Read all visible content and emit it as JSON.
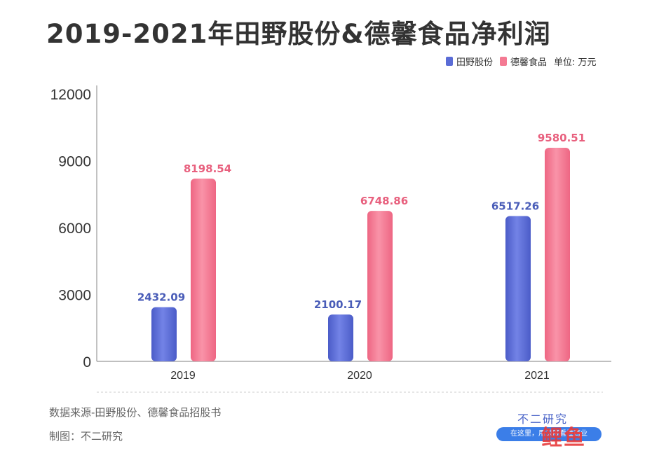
{
  "chart_data": {
    "type": "bar",
    "title": "2019-2021年田野股份&德馨食品净利润",
    "unit": "单位: 万元",
    "categories": [
      "2019",
      "2020",
      "2021"
    ],
    "series": [
      {
        "name": "田野股份",
        "values": [
          2432.09,
          2100.17,
          6517.26
        ],
        "color": "#5a6cd6",
        "label_color": "#4a5db8"
      },
      {
        "name": "德馨食品",
        "values": [
          8198.54,
          6748.86,
          9580.51
        ],
        "color": "#f47a93",
        "label_color": "#e8607e"
      }
    ],
    "value_labels": [
      [
        "2432.09",
        "2100.17",
        "6517.26"
      ],
      [
        "8198.54",
        "6748.86",
        "9580.51"
      ]
    ],
    "y_ticks": [
      "0",
      "3000",
      "6000",
      "9000",
      "12000"
    ],
    "y_tick_values": [
      0,
      3000,
      6000,
      9000,
      12000
    ],
    "ylim": [
      0,
      12000
    ],
    "legend_position": "top-right",
    "grid": false
  },
  "footer": {
    "source": "数据来源-田野股份、德馨食品招股书",
    "maker": "制图：不二研究",
    "brand": "不二研究",
    "banner": "在这里，用深度看懂商业"
  },
  "watermark_logo": "鲤鱼"
}
